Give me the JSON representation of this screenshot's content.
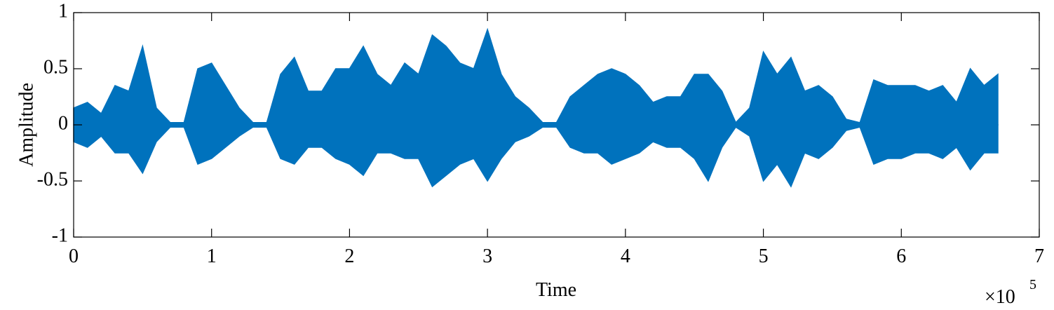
{
  "chart_data": {
    "type": "waveform",
    "x_label": "Time",
    "y_label": "Amplitude",
    "x_scale_label": "×10",
    "x_scale_exponent": "5",
    "x": [
      0,
      10000,
      20000,
      30000,
      40000,
      50000,
      60000,
      70000,
      80000,
      90000,
      100000,
      110000,
      120000,
      130000,
      140000,
      150000,
      160000,
      170000,
      180000,
      190000,
      200000,
      210000,
      220000,
      230000,
      240000,
      250000,
      260000,
      270000,
      280000,
      290000,
      300000,
      310000,
      320000,
      330000,
      340000,
      350000,
      360000,
      370000,
      380000,
      390000,
      400000,
      410000,
      420000,
      430000,
      440000,
      450000,
      460000,
      470000,
      480000,
      490000,
      500000,
      510000,
      520000,
      530000,
      540000,
      550000,
      560000,
      570000,
      580000,
      590000,
      600000,
      610000,
      620000,
      630000,
      640000,
      650000,
      660000,
      670000
    ],
    "series": [
      {
        "name": "upper",
        "color": "#0072bd",
        "values": [
          0.15,
          0.2,
          0.1,
          0.35,
          0.3,
          0.7,
          0.15,
          0.02,
          0.02,
          0.5,
          0.55,
          0.35,
          0.15,
          0.02,
          0.02,
          0.45,
          0.6,
          0.3,
          0.3,
          0.5,
          0.5,
          0.7,
          0.45,
          0.35,
          0.55,
          0.45,
          0.8,
          0.7,
          0.55,
          0.5,
          0.85,
          0.45,
          0.25,
          0.15,
          0.02,
          0.02,
          0.25,
          0.35,
          0.45,
          0.5,
          0.45,
          0.35,
          0.2,
          0.25,
          0.25,
          0.45,
          0.45,
          0.3,
          0.02,
          0.15,
          0.65,
          0.45,
          0.6,
          0.3,
          0.35,
          0.25,
          0.05,
          0.02,
          0.4,
          0.35,
          0.35,
          0.35,
          0.3,
          0.35,
          0.2,
          0.5,
          0.35,
          0.45
        ]
      },
      {
        "name": "lower",
        "color": "#0072bd",
        "values": [
          -0.15,
          -0.2,
          -0.1,
          -0.25,
          -0.25,
          -0.43,
          -0.15,
          -0.02,
          -0.02,
          -0.35,
          -0.3,
          -0.2,
          -0.1,
          -0.02,
          -0.02,
          -0.3,
          -0.35,
          -0.2,
          -0.2,
          -0.3,
          -0.35,
          -0.45,
          -0.25,
          -0.25,
          -0.3,
          -0.3,
          -0.55,
          -0.45,
          -0.35,
          -0.3,
          -0.5,
          -0.3,
          -0.15,
          -0.1,
          -0.02,
          -0.02,
          -0.2,
          -0.25,
          -0.25,
          -0.35,
          -0.3,
          -0.25,
          -0.15,
          -0.2,
          -0.2,
          -0.3,
          -0.5,
          -0.2,
          -0.02,
          -0.1,
          -0.5,
          -0.35,
          -0.55,
          -0.25,
          -0.3,
          -0.2,
          -0.05,
          -0.02,
          -0.35,
          -0.3,
          -0.3,
          -0.25,
          -0.25,
          -0.3,
          -0.2,
          -0.4,
          -0.25,
          -0.25
        ]
      }
    ],
    "xlim": [
      0,
      700000
    ],
    "xticks": [
      {
        "value": 0,
        "label": "0"
      },
      {
        "value": 100000,
        "label": "1"
      },
      {
        "value": 200000,
        "label": "2"
      },
      {
        "value": 300000,
        "label": "3"
      },
      {
        "value": 400000,
        "label": "4"
      },
      {
        "value": 500000,
        "label": "5"
      },
      {
        "value": 600000,
        "label": "6"
      },
      {
        "value": 700000,
        "label": "7"
      }
    ],
    "ylim": [
      -1,
      1
    ],
    "yticks": [
      -1,
      -0.5,
      0,
      0.5,
      1
    ],
    "grid": false
  }
}
